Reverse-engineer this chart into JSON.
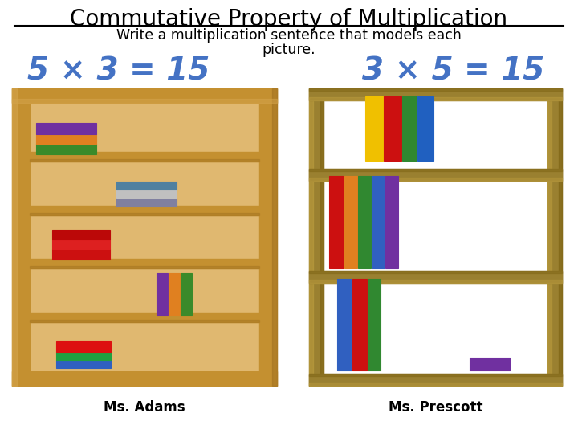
{
  "title": "Commutative Property of Multiplication",
  "subtitle_line1": "Write a multiplication sentence that models each",
  "subtitle_line2": "picture.",
  "left_equation": "5 × 3 = 15",
  "right_equation": "3 × 5 = 15",
  "left_label": "Ms. Adams",
  "right_label": "Ms. Prescott",
  "equation_color": "#4472C4",
  "title_color": "#000000",
  "subtitle_color": "#000000",
  "label_color": "#000000",
  "bg_color": "#ffffff",
  "wood_light": "#D4A44C",
  "wood_mid": "#C49030",
  "wood_dark": "#A07020",
  "wood_inner": "#E0B870",
  "open_shelf_wood": "#9A8030",
  "open_shelf_dark": "#7A6010"
}
